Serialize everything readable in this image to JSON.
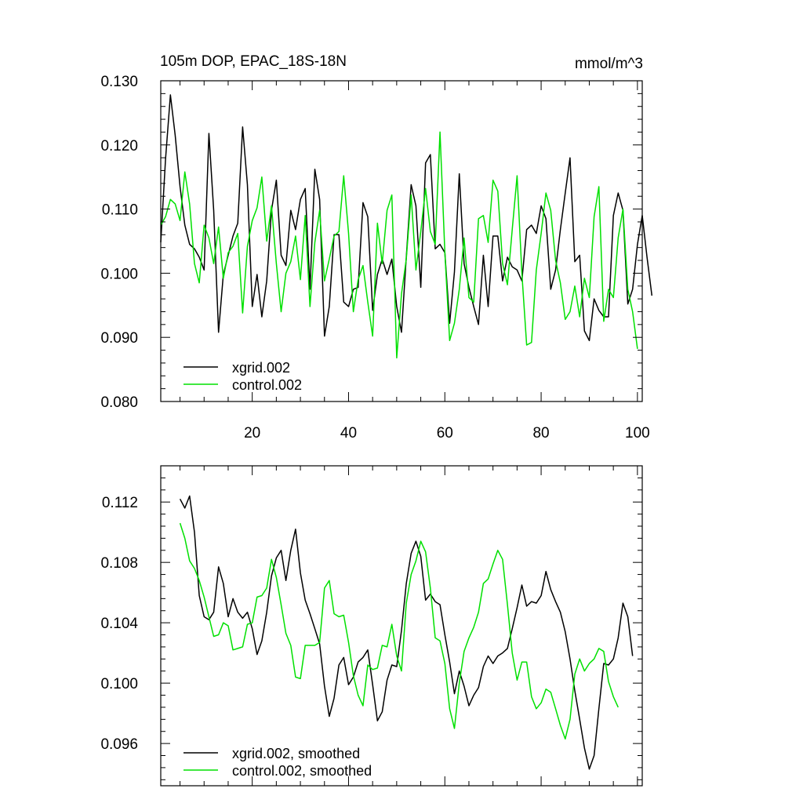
{
  "figure": {
    "title_left": "105m DOP, EPAC_18S-18N",
    "title_right": "mmol/m^3"
  },
  "colors": {
    "xgrid": "#000000",
    "control": "#00e000"
  },
  "chart_data": [
    {
      "type": "line",
      "title": "105m DOP, EPAC_18S-18N",
      "units": "mmol/m^3",
      "xlim": [
        1,
        101
      ],
      "ylim": [
        0.08,
        0.13
      ],
      "xticks": [
        20,
        40,
        60,
        80,
        100
      ],
      "x_tick_labels": [
        "20",
        "40",
        "60",
        "80",
        "100"
      ],
      "yticks": [
        0.08,
        0.09,
        0.1,
        0.11,
        0.12,
        0.13
      ],
      "y_tick_labels": [
        "0.080",
        "0.090",
        "0.100",
        "0.110",
        "0.120",
        "0.130"
      ],
      "legend_position": "bottom-left",
      "x_start": 1,
      "series": [
        {
          "name": "xgrid.002",
          "color": "#000000",
          "values": [
            0.1048,
            0.1178,
            0.1278,
            0.1215,
            0.1135,
            0.1075,
            0.1045,
            0.1038,
            0.1025,
            0.1005,
            0.1218,
            0.1098,
            0.0908,
            0.0998,
            0.1028,
            0.1058,
            0.1078,
            0.1228,
            0.1138,
            0.0948,
            0.0998,
            0.0932,
            0.0988,
            0.1098,
            0.1145,
            0.1028,
            0.1012,
            0.1098,
            0.1068,
            0.1115,
            0.1132,
            0.0975,
            0.1162,
            0.1115,
            0.0902,
            0.0948,
            0.106,
            0.106,
            0.0955,
            0.0948,
            0.0975,
            0.0978,
            0.111,
            0.1088,
            0.0942,
            0.0998,
            0.1022,
            0.0998,
            0.1022,
            0.0948,
            0.0908,
            0.1025,
            0.1138,
            0.1105,
            0.0978,
            0.1172,
            0.1185,
            0.1038,
            0.1045,
            0.1032,
            0.0922,
            0.1002,
            0.1155,
            0.1015,
            0.0978,
            0.0948,
            0.092,
            0.1028,
            0.0948,
            0.1058,
            0.1058,
            0.0988,
            0.1025,
            0.101,
            0.1005,
            0.0988,
            0.1068,
            0.1075,
            0.1062,
            0.1105,
            0.1085,
            0.0975,
            0.1005,
            0.1068,
            0.1125,
            0.118,
            0.1018,
            0.1028,
            0.091,
            0.0895,
            0.096,
            0.0942,
            0.0932,
            0.0932,
            0.109,
            0.1125,
            0.1098,
            0.0952,
            0.0975,
            0.1045,
            0.109,
            0.1025,
            0.0965
          ]
        },
        {
          "name": "control.002",
          "color": "#00e000",
          "values": [
            0.1075,
            0.1088,
            0.1115,
            0.1108,
            0.1082,
            0.1158,
            0.1108,
            0.1015,
            0.0985,
            0.1075,
            0.1055,
            0.1015,
            0.1072,
            0.0992,
            0.1032,
            0.1042,
            0.1062,
            0.0938,
            0.1042,
            0.1082,
            0.1102,
            0.115,
            0.105,
            0.1105,
            0.1015,
            0.094,
            0.1,
            0.1018,
            0.1058,
            0.099,
            0.109,
            0.0948,
            0.1048,
            0.1098,
            0.0988,
            0.1022,
            0.1058,
            0.1065,
            0.1152,
            0.1062,
            0.094,
            0.099,
            0.1012,
            0.0955,
            0.0902,
            0.1078,
            0.1015,
            0.1098,
            0.1122,
            0.0868,
            0.0968,
            0.1022,
            0.1122,
            0.1005,
            0.1065,
            0.1132,
            0.1065,
            0.1045,
            0.122,
            0.1032,
            0.0895,
            0.0922,
            0.0975,
            0.1055,
            0.0962,
            0.0955,
            0.1085,
            0.109,
            0.1048,
            0.1145,
            0.1128,
            0.1015,
            0.0982,
            0.1068,
            0.1152,
            0.1,
            0.0888,
            0.0892,
            0.1005,
            0.1062,
            0.1125,
            0.1098,
            0.102,
            0.0985,
            0.0928,
            0.094,
            0.098,
            0.0932,
            0.0992,
            0.0962,
            0.1088,
            0.1135,
            0.0925,
            0.0975,
            0.0962,
            0.1055,
            0.11,
            0.0975,
            0.094,
            0.0882
          ]
        }
      ]
    },
    {
      "type": "line",
      "xlim": [
        1,
        101
      ],
      "ylim": [
        0.0932,
        0.1144
      ],
      "xticks": [
        20,
        40,
        60,
        80,
        100
      ],
      "yticks": [
        0.096,
        0.1,
        0.104,
        0.108,
        0.112
      ],
      "y_tick_labels": [
        "0.096",
        "0.100",
        "0.104",
        "0.108",
        "0.112"
      ],
      "legend_position": "bottom-left",
      "x_start": 5,
      "series": [
        {
          "name": "xgrid.002, smoothed",
          "color": "#000000",
          "values": [
            0.1122,
            0.1116,
            0.1124,
            0.11,
            0.1058,
            0.1044,
            0.1042,
            0.1047,
            0.1077,
            0.1066,
            0.1044,
            0.1056,
            0.1047,
            0.1043,
            0.1047,
            0.1036,
            0.1019,
            0.1028,
            0.1047,
            0.1071,
            0.1083,
            0.1088,
            0.1068,
            0.1088,
            0.1102,
            0.1073,
            0.1055,
            0.1046,
            0.1036,
            0.1026,
            0.0998,
            0.0978,
            0.099,
            0.1012,
            0.1017,
            0.0999,
            0.1004,
            0.1014,
            0.1017,
            0.1022,
            0.0999,
            0.0975,
            0.0981,
            0.1002,
            0.1012,
            0.1011,
            0.1035,
            0.1066,
            0.1086,
            0.1094,
            0.1084,
            0.1055,
            0.1059,
            0.1054,
            0.1052,
            0.1032,
            0.1014,
            0.0993,
            0.1008,
            0.0998,
            0.0985,
            0.0992,
            0.0997,
            0.1011,
            0.1018,
            0.1013,
            0.1018,
            0.102,
            0.1023,
            0.1036,
            0.105,
            0.1065,
            0.1051,
            0.1054,
            0.1053,
            0.1058,
            0.1074,
            0.1062,
            0.1054,
            0.1047,
            0.1034,
            0.1016,
            0.0995,
            0.0976,
            0.0957,
            0.0943,
            0.0952,
            0.0983,
            0.1013,
            0.1012,
            0.1016,
            0.103,
            0.1053,
            0.1044,
            0.1018
          ]
        },
        {
          "name": "control.002, smoothed",
          "color": "#00e000",
          "values": [
            0.1106,
            0.1096,
            0.1081,
            0.1076,
            0.1068,
            0.1057,
            0.1044,
            0.1031,
            0.1032,
            0.104,
            0.1038,
            0.1022,
            0.1023,
            0.1024,
            0.1039,
            0.104,
            0.1057,
            0.1058,
            0.1063,
            0.1082,
            0.107,
            0.1052,
            0.1033,
            0.1025,
            0.1004,
            0.1003,
            0.1025,
            0.1025,
            0.1025,
            0.1027,
            0.1063,
            0.1068,
            0.1046,
            0.1044,
            0.1045,
            0.1027,
            0.1005,
            0.0992,
            0.0985,
            0.1012,
            0.1009,
            0.101,
            0.1025,
            0.1024,
            0.1039,
            0.1018,
            0.1008,
            0.1053,
            0.1072,
            0.1081,
            0.1094,
            0.1087,
            0.1063,
            0.103,
            0.1028,
            0.1013,
            0.0983,
            0.097,
            0.1,
            0.1021,
            0.103,
            0.1037,
            0.1047,
            0.1066,
            0.1069,
            0.1079,
            0.1088,
            0.1082,
            0.1052,
            0.102,
            0.1002,
            0.1014,
            0.1014,
            0.0991,
            0.0983,
            0.0987,
            0.0996,
            0.0994,
            0.0983,
            0.0972,
            0.0963,
            0.0976,
            0.1006,
            0.1016,
            0.1008,
            0.1013,
            0.1016,
            0.1023,
            0.1021,
            0.1001,
            0.0991,
            0.0984
          ]
        }
      ]
    }
  ]
}
